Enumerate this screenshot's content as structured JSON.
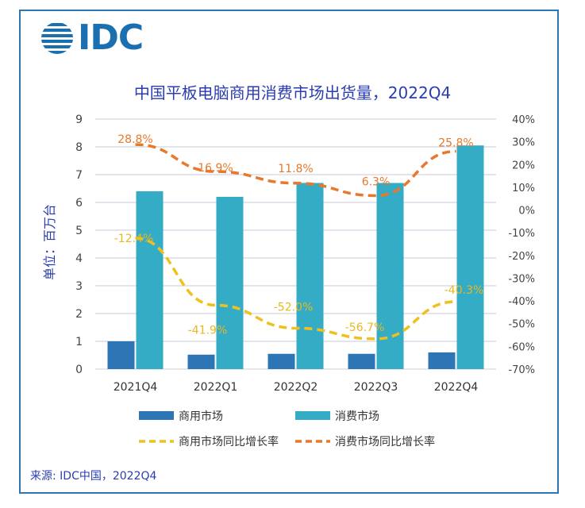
{
  "logo": {
    "text": "IDC"
  },
  "title": "中国平板电脑商用消费市场出货量，2022Q4",
  "source": "来源: IDC中国，2022Q4",
  "chart_data": {
    "type": "bar",
    "categories": [
      "2021Q4",
      "2022Q1",
      "2022Q2",
      "2022Q3",
      "2022Q4"
    ],
    "ylabel": "单位：百万台",
    "ylim": [
      0,
      9
    ],
    "y_ticks": [
      "0",
      "1",
      "2",
      "3",
      "4",
      "5",
      "6",
      "7",
      "8",
      "9"
    ],
    "y2lim": [
      -70,
      40
    ],
    "y2_ticks": [
      "-70%",
      "-60%",
      "-50%",
      "-40%",
      "-30%",
      "-20%",
      "-10%",
      "0%",
      "10%",
      "20%",
      "30%",
      "40%"
    ],
    "grid": true,
    "legend_position": "bottom",
    "series": [
      {
        "name": "商用市场",
        "kind": "bar",
        "axis": "left",
        "color": "#2e75b6",
        "values": [
          1.0,
          0.52,
          0.55,
          0.55,
          0.6
        ]
      },
      {
        "name": "消费市场",
        "kind": "bar",
        "axis": "left",
        "color": "#34acc6",
        "values": [
          6.4,
          6.2,
          6.7,
          6.7,
          8.05
        ]
      },
      {
        "name": "商用市场同比增长率",
        "kind": "line",
        "axis": "right",
        "color": "#f0c020",
        "values": [
          -12.4,
          -41.9,
          -52.0,
          -56.7,
          -40.3
        ],
        "labels": [
          "-12.4%",
          "-41.9%",
          "-52.0%",
          "-56.7%",
          "-40.3%"
        ]
      },
      {
        "name": "消费市场同比增长率",
        "kind": "line",
        "axis": "right",
        "color": "#e8782a",
        "values": [
          28.8,
          16.9,
          11.8,
          6.3,
          25.8
        ],
        "labels": [
          "28.8%",
          "16.9%",
          "11.8%",
          "6.3%",
          "25.8%"
        ]
      }
    ]
  }
}
